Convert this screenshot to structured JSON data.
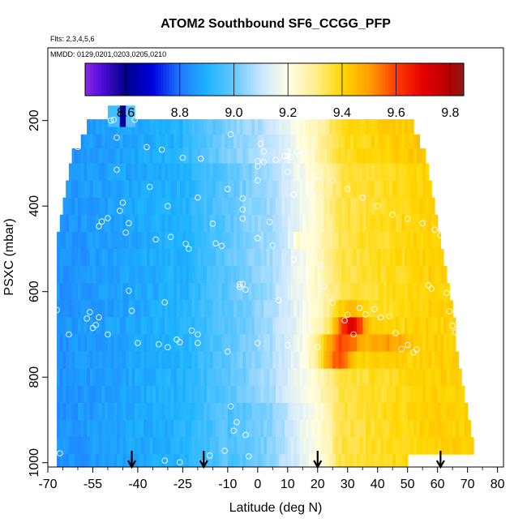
{
  "chart_data": {
    "type": "heatmap",
    "title": "ATOM2 Southbound SF6_CCGG_PFP",
    "subtitle_flights": "Flts: 2,3,4,5,6",
    "subtitle_dates": "MMDD: 0129,0201,0203,0205,0210",
    "xlabel": "Latitude (deg N)",
    "ylabel": "PSXC (mbar)",
    "xlim": [
      -70,
      82
    ],
    "ylim": [
      1010,
      30
    ],
    "x_ticks": [
      -70,
      -55,
      -40,
      -25,
      -10,
      0,
      10,
      20,
      30,
      40,
      50,
      60,
      70,
      80
    ],
    "x_tick_labels": [
      "-70",
      "-55",
      "-40",
      "-25",
      "-10",
      "0",
      "10",
      "20",
      "30",
      "40",
      "50",
      "60",
      "70",
      "80"
    ],
    "y_ticks": [
      200,
      400,
      600,
      800,
      1000
    ],
    "y_tick_labels": [
      "200",
      "400",
      "600",
      "800",
      "1000"
    ],
    "colorbar": {
      "min": 8.45,
      "max": 9.85,
      "ticks": [
        8.6,
        8.8,
        9.0,
        9.2,
        9.4,
        9.6,
        9.8
      ],
      "tick_labels": [
        "8.6",
        "8.8",
        "9.0",
        "9.2",
        "9.4",
        "9.6",
        "9.8"
      ],
      "stops": [
        {
          "v": 8.45,
          "c": "#8a2be2"
        },
        {
          "v": 8.5,
          "c": "#5a10e0"
        },
        {
          "v": 8.6,
          "c": "#00008b"
        },
        {
          "v": 8.7,
          "c": "#0000e0"
        },
        {
          "v": 8.8,
          "c": "#1e78ff"
        },
        {
          "v": 8.9,
          "c": "#1eb4ff"
        },
        {
          "v": 9.0,
          "c": "#64c8ff"
        },
        {
          "v": 9.1,
          "c": "#c8e6ff"
        },
        {
          "v": 9.2,
          "c": "#ffffe6"
        },
        {
          "v": 9.3,
          "c": "#ffee90"
        },
        {
          "v": 9.4,
          "c": "#ffd700"
        },
        {
          "v": 9.5,
          "c": "#ffa000"
        },
        {
          "v": 9.6,
          "c": "#ff3c00"
        },
        {
          "v": 9.7,
          "c": "#e60000"
        },
        {
          "v": 9.8,
          "c": "#b40000"
        },
        {
          "v": 9.85,
          "c": "#8b1a1a"
        }
      ]
    },
    "profiles": [
      {
        "p": 1000,
        "lat_start": -67,
        "lat_end": 50
      },
      {
        "p": 960,
        "lat_start": -67,
        "lat_end": 72
      },
      {
        "p": 920,
        "lat_start": -67,
        "lat_end": 71
      },
      {
        "p": 880,
        "lat_start": -67,
        "lat_end": 70
      },
      {
        "p": 840,
        "lat_start": -67,
        "lat_end": 69
      },
      {
        "p": 800,
        "lat_start": -67,
        "lat_end": 68
      },
      {
        "p": 760,
        "lat_start": -67,
        "lat_end": 67
      },
      {
        "p": 720,
        "lat_start": -67,
        "lat_end": 66
      },
      {
        "p": 680,
        "lat_start": -67,
        "lat_end": 66
      },
      {
        "p": 640,
        "lat_start": -67,
        "lat_end": 65
      },
      {
        "p": 600,
        "lat_start": -67,
        "lat_end": 64
      },
      {
        "p": 560,
        "lat_start": -67,
        "lat_end": 63
      },
      {
        "p": 520,
        "lat_start": -67,
        "lat_end": 62
      },
      {
        "p": 480,
        "lat_start": -67,
        "lat_end": 61
      },
      {
        "p": 440,
        "lat_start": -66,
        "lat_end": 60
      },
      {
        "p": 400,
        "lat_start": -65,
        "lat_end": 59
      },
      {
        "p": 360,
        "lat_start": -64,
        "lat_end": 58
      },
      {
        "p": 320,
        "lat_start": -63,
        "lat_end": 57
      },
      {
        "p": 280,
        "lat_start": -62,
        "lat_end": 56
      },
      {
        "p": 250,
        "lat_start": -59,
        "lat_end": 54
      },
      {
        "p": 215,
        "lat_start": -57,
        "lat_end": 52
      }
    ],
    "upper_patch": {
      "p_top": 165,
      "p_bottom": 215,
      "lat_start": -50,
      "lat_end": -41
    },
    "high_anomalies": [
      {
        "lat": 31,
        "p": 680,
        "value": 9.72,
        "spread_lat": 5,
        "spread_p": 35
      },
      {
        "lat": 26,
        "p": 742,
        "value": 9.72,
        "spread_lat": 6,
        "spread_p": 30
      },
      {
        "lat": 43,
        "p": 725,
        "value": 9.5,
        "spread_lat": 8,
        "spread_p": 30
      },
      {
        "lat": 13,
        "p": 475,
        "value": 9.45,
        "spread_lat": 1.5,
        "spread_p": 15
      }
    ],
    "samples": [
      [
        -67,
        643
      ],
      [
        -66,
        978
      ],
      [
        -60,
        262
      ],
      [
        -57,
        663
      ],
      [
        -56,
        648
      ],
      [
        -55,
        685
      ],
      [
        -54,
        678
      ],
      [
        -53,
        660
      ],
      [
        -53,
        447
      ],
      [
        -52,
        436
      ],
      [
        -50,
        428
      ],
      [
        -49,
        200
      ],
      [
        -48,
        198
      ],
      [
        -47,
        240
      ],
      [
        -47,
        315
      ],
      [
        -46,
        411
      ],
      [
        -45,
        392
      ],
      [
        -44,
        462
      ],
      [
        -43,
        440
      ],
      [
        -43,
        598
      ],
      [
        -42,
        645
      ],
      [
        -41,
        198
      ],
      [
        -37,
        262
      ],
      [
        -36,
        355
      ],
      [
        -34,
        478
      ],
      [
        -33,
        723
      ],
      [
        -32,
        268
      ],
      [
        -31,
        625
      ],
      [
        -31,
        995
      ],
      [
        -29,
        472
      ],
      [
        -27,
        712
      ],
      [
        -26,
        718
      ],
      [
        -26,
        999
      ],
      [
        -25,
        287
      ],
      [
        -24,
        488
      ],
      [
        -23,
        500
      ],
      [
        -22,
        691
      ],
      [
        -20,
        700
      ],
      [
        -19,
        289
      ],
      [
        -18,
        1001
      ],
      [
        -16,
        983
      ],
      [
        -15,
        441
      ],
      [
        -14,
        487
      ],
      [
        -12,
        493
      ],
      [
        -11,
        972
      ],
      [
        -9,
        232
      ],
      [
        -9,
        868
      ],
      [
        -8,
        925
      ],
      [
        -7,
        905
      ],
      [
        -6,
        583
      ],
      [
        -6,
        589
      ],
      [
        -5,
        382
      ],
      [
        -5,
        408
      ],
      [
        -5,
        429
      ],
      [
        -5,
        582
      ],
      [
        -4,
        595
      ],
      [
        -4,
        935
      ],
      [
        -3,
        985
      ],
      [
        0,
        295
      ],
      [
        0,
        307
      ],
      [
        0,
        475
      ],
      [
        1,
        254
      ],
      [
        2,
        272
      ],
      [
        2,
        297
      ],
      [
        4,
        437
      ],
      [
        5,
        492
      ],
      [
        6,
        292
      ],
      [
        7,
        620
      ],
      [
        9,
        283
      ],
      [
        10,
        283
      ],
      [
        11,
        285
      ],
      [
        12,
        373
      ],
      [
        12,
        525
      ],
      [
        13,
        272
      ],
      [
        14,
        281
      ],
      [
        15,
        278
      ],
      [
        17,
        552
      ],
      [
        20,
        373
      ],
      [
        21,
        538
      ],
      [
        22,
        588
      ],
      [
        24,
        612
      ],
      [
        25,
        626
      ],
      [
        29,
        667
      ],
      [
        30,
        654
      ],
      [
        32,
        700
      ],
      [
        34,
        638
      ],
      [
        36,
        653
      ],
      [
        39,
        641
      ],
      [
        41,
        660
      ],
      [
        44,
        658
      ],
      [
        46,
        697
      ],
      [
        48,
        734
      ],
      [
        50,
        725
      ],
      [
        52,
        742
      ],
      [
        53,
        735
      ],
      [
        57,
        585
      ],
      [
        58,
        593
      ],
      [
        59,
        455
      ],
      [
        61,
        468
      ],
      [
        63,
        603
      ],
      [
        64,
        646
      ],
      [
        65,
        680
      ],
      [
        66,
        695
      ],
      [
        67,
        671
      ],
      [
        68,
        686
      ],
      [
        70,
        680
      ],
      [
        70,
        700
      ],
      [
        -63,
        700
      ],
      [
        -50,
        700
      ],
      [
        -40,
        720
      ],
      [
        -30,
        730
      ],
      [
        -20,
        720
      ],
      [
        -10,
        740
      ],
      [
        0,
        720
      ],
      [
        10,
        725
      ],
      [
        20,
        730
      ],
      [
        50,
        430
      ],
      [
        55,
        440
      ],
      [
        45,
        420
      ],
      [
        40,
        400
      ],
      [
        35,
        380
      ],
      [
        30,
        360
      ],
      [
        25,
        340
      ],
      [
        20,
        330
      ],
      [
        10,
        320
      ],
      [
        0,
        340
      ],
      [
        -10,
        360
      ],
      [
        -20,
        380
      ],
      [
        -30,
        400
      ]
    ],
    "arrows_lat": [
      -42,
      -18,
      20,
      61
    ]
  }
}
